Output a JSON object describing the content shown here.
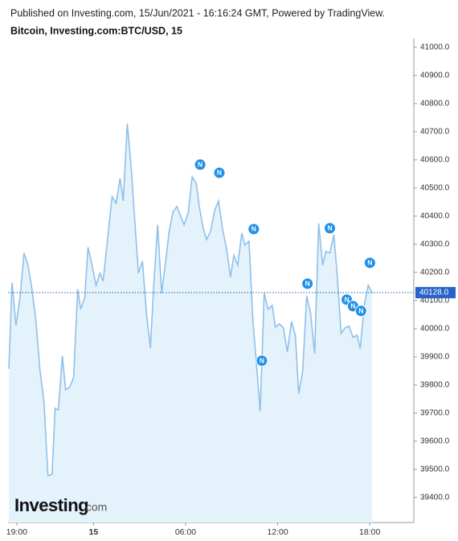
{
  "header": {
    "published": "Published on Investing.com, 15/Jun/2021 - 16:16:24 GMT, Powered by TradingView.",
    "symbol": "Bitcoin, Investing.com:BTC/USD, 15"
  },
  "watermark": {
    "brand": "Investing",
    "suffix": ".com"
  },
  "chart_data": {
    "type": "area",
    "x": [
      -5.52,
      -5.31,
      -5.05,
      -4.79,
      -4.53,
      -4.27,
      -4.01,
      -3.75,
      -3.49,
      -3.23,
      -2.97,
      -2.7,
      -2.5,
      -2.29,
      -2.03,
      -1.82,
      -1.56,
      -1.3,
      -1.03,
      -0.83,
      -0.57,
      -0.36,
      -0.1,
      0.17,
      0.43,
      0.63,
      0.9,
      1.21,
      1.47,
      1.73,
      1.94,
      2.2,
      2.46,
      2.67,
      2.93,
      3.19,
      3.45,
      3.71,
      3.92,
      4.18,
      4.44,
      4.7,
      4.91,
      5.17,
      5.43,
      5.7,
      5.9,
      6.17,
      6.43,
      6.69,
      6.9,
      7.16,
      7.37,
      7.63,
      7.89,
      8.15,
      8.41,
      8.67,
      8.93,
      9.14,
      9.4,
      9.66,
      9.87,
      10.13,
      10.39,
      10.65,
      10.86,
      11.12,
      11.38,
      11.64,
      11.85,
      12.11,
      12.37,
      12.63,
      12.9,
      13.16,
      13.37,
      13.63,
      13.89,
      14.15,
      14.41,
      14.67,
      14.93,
      15.14,
      15.4,
      15.66,
      15.87,
      16.13,
      16.39,
      16.65,
      16.91,
      17.17,
      17.38,
      17.64,
      17.9,
      18.16
    ],
    "series": [
      {
        "name": "BTC/USD",
        "color": "#8fc0e9",
        "values": [
          39857,
          40163,
          40011,
          40111,
          40269,
          40226,
          40140,
          40026,
          39854,
          39740,
          39477,
          39483,
          39717,
          39711,
          39903,
          39783,
          39791,
          39826,
          40140,
          40069,
          40111,
          40289,
          40226,
          40154,
          40197,
          40169,
          40311,
          40469,
          40446,
          40534,
          40454,
          40729,
          40569,
          40397,
          40197,
          40240,
          40054,
          39931,
          40154,
          40369,
          40126,
          40240,
          40340,
          40414,
          40434,
          40397,
          40369,
          40411,
          40540,
          40517,
          40431,
          40354,
          40317,
          40346,
          40420,
          40454,
          40354,
          40283,
          40183,
          40260,
          40226,
          40340,
          40297,
          40311,
          40026,
          39854,
          39706,
          40126,
          40069,
          40083,
          40006,
          40017,
          40003,
          39917,
          40026,
          39974,
          39769,
          39849,
          40117,
          40054,
          39911,
          40374,
          40226,
          40274,
          40269,
          40334,
          40197,
          39983,
          40003,
          40009,
          39969,
          39977,
          39929,
          40083,
          40154,
          40128
        ]
      }
    ],
    "last_price": {
      "value": 40128,
      "label": "40128.0"
    },
    "markers": [
      {
        "label": "N",
        "x": 6.95,
        "y": 40583
      },
      {
        "label": "N",
        "x": 8.2,
        "y": 40554
      },
      {
        "label": "N",
        "x": 10.44,
        "y": 40354
      },
      {
        "label": "N",
        "x": 10.97,
        "y": 39886
      },
      {
        "label": "N",
        "x": 13.94,
        "y": 40160
      },
      {
        "label": "N",
        "x": 15.4,
        "y": 40357
      },
      {
        "label": "N",
        "x": 16.5,
        "y": 40103
      },
      {
        "label": "N",
        "x": 16.91,
        "y": 40080
      },
      {
        "label": "N",
        "x": 17.43,
        "y": 40063
      },
      {
        "label": "N",
        "x": 18.01,
        "y": 40234
      }
    ],
    "xlim": [
      -5.57,
      20.87
    ],
    "xticks": [
      {
        "value": -5,
        "label": "19:00"
      },
      {
        "value": 0,
        "label": "15"
      },
      {
        "value": 6,
        "label": "06:00"
      },
      {
        "value": 12,
        "label": "12:00"
      },
      {
        "value": 18,
        "label": "18:00"
      }
    ],
    "ylim": [
      39311,
      41031
    ],
    "yticks": [
      {
        "value": 39400,
        "label": "39400.0"
      },
      {
        "value": 39500,
        "label": "39500.0"
      },
      {
        "value": 39600,
        "label": "39600.0"
      },
      {
        "value": 39700,
        "label": "39700.0"
      },
      {
        "value": 39800,
        "label": "39800.0"
      },
      {
        "value": 39900,
        "label": "39900.0"
      },
      {
        "value": 40000,
        "label": "40000.0"
      },
      {
        "value": 40100,
        "label": "40100.0"
      },
      {
        "value": 40200,
        "label": "40200.0"
      },
      {
        "value": 40300,
        "label": "40300.0"
      },
      {
        "value": 40400,
        "label": "40400.0"
      },
      {
        "value": 40500,
        "label": "40500.0"
      },
      {
        "value": 40600,
        "label": "40600.0"
      },
      {
        "value": 40700,
        "label": "40700.0"
      },
      {
        "value": 40800,
        "label": "40800.0"
      },
      {
        "value": 40900,
        "label": "40900.0"
      },
      {
        "value": 41000,
        "label": "41000.0"
      }
    ],
    "grid": false
  }
}
